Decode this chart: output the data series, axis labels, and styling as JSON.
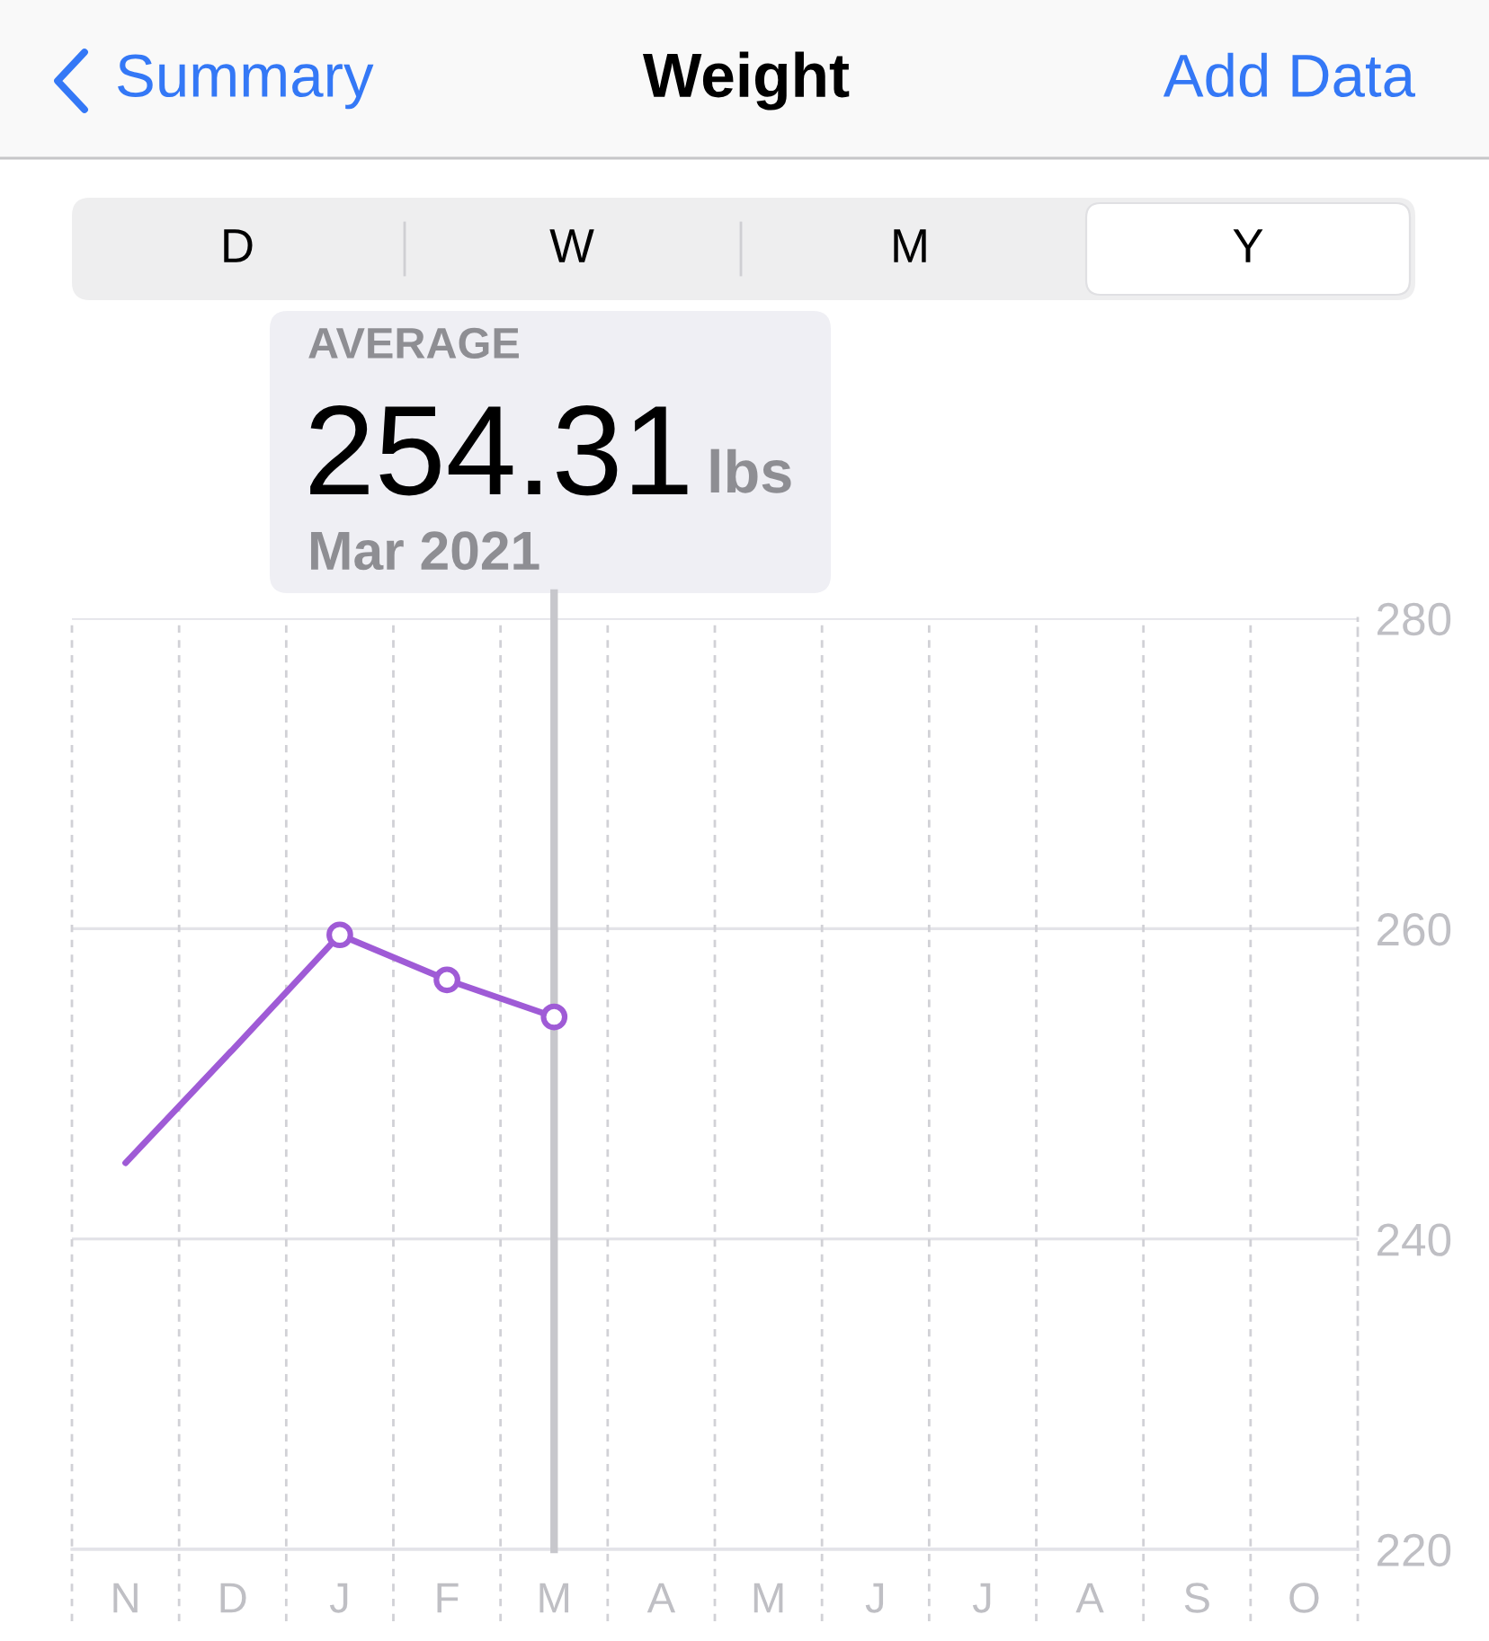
{
  "chart_data": {
    "type": "line",
    "title": "Weight",
    "annotations": [
      "Summary",
      "Add Data",
      "D",
      "W",
      "M",
      "Y",
      "AVERAGE",
      "254.31",
      "lbs",
      "Mar 2021"
    ],
    "categories": [
      "N",
      "D",
      "J",
      "F",
      "M",
      "A",
      "M",
      "J",
      "J",
      "A",
      "S",
      "O"
    ],
    "series": [
      {
        "color": "#9f5bd6",
        "marker": "none",
        "values": [
          244.9,
          252.2,
          259.6,
          null,
          null,
          null,
          null,
          null,
          null,
          null,
          null,
          null
        ]
      },
      {
        "color": "#9f5bd6",
        "values": [
          null,
          null,
          259.6,
          256.7,
          254.31,
          null,
          null,
          null,
          null,
          null,
          null,
          null
        ]
      }
    ],
    "marker": "circle",
    "line_style": "solid",
    "ylim": [
      220,
      280
    ],
    "yticks": [
      220,
      240,
      260,
      280
    ],
    "grid": true,
    "ref_lines": [
      {
        "axis": "x",
        "value": "M",
        "color": "#c7c7cc"
      }
    ]
  }
}
